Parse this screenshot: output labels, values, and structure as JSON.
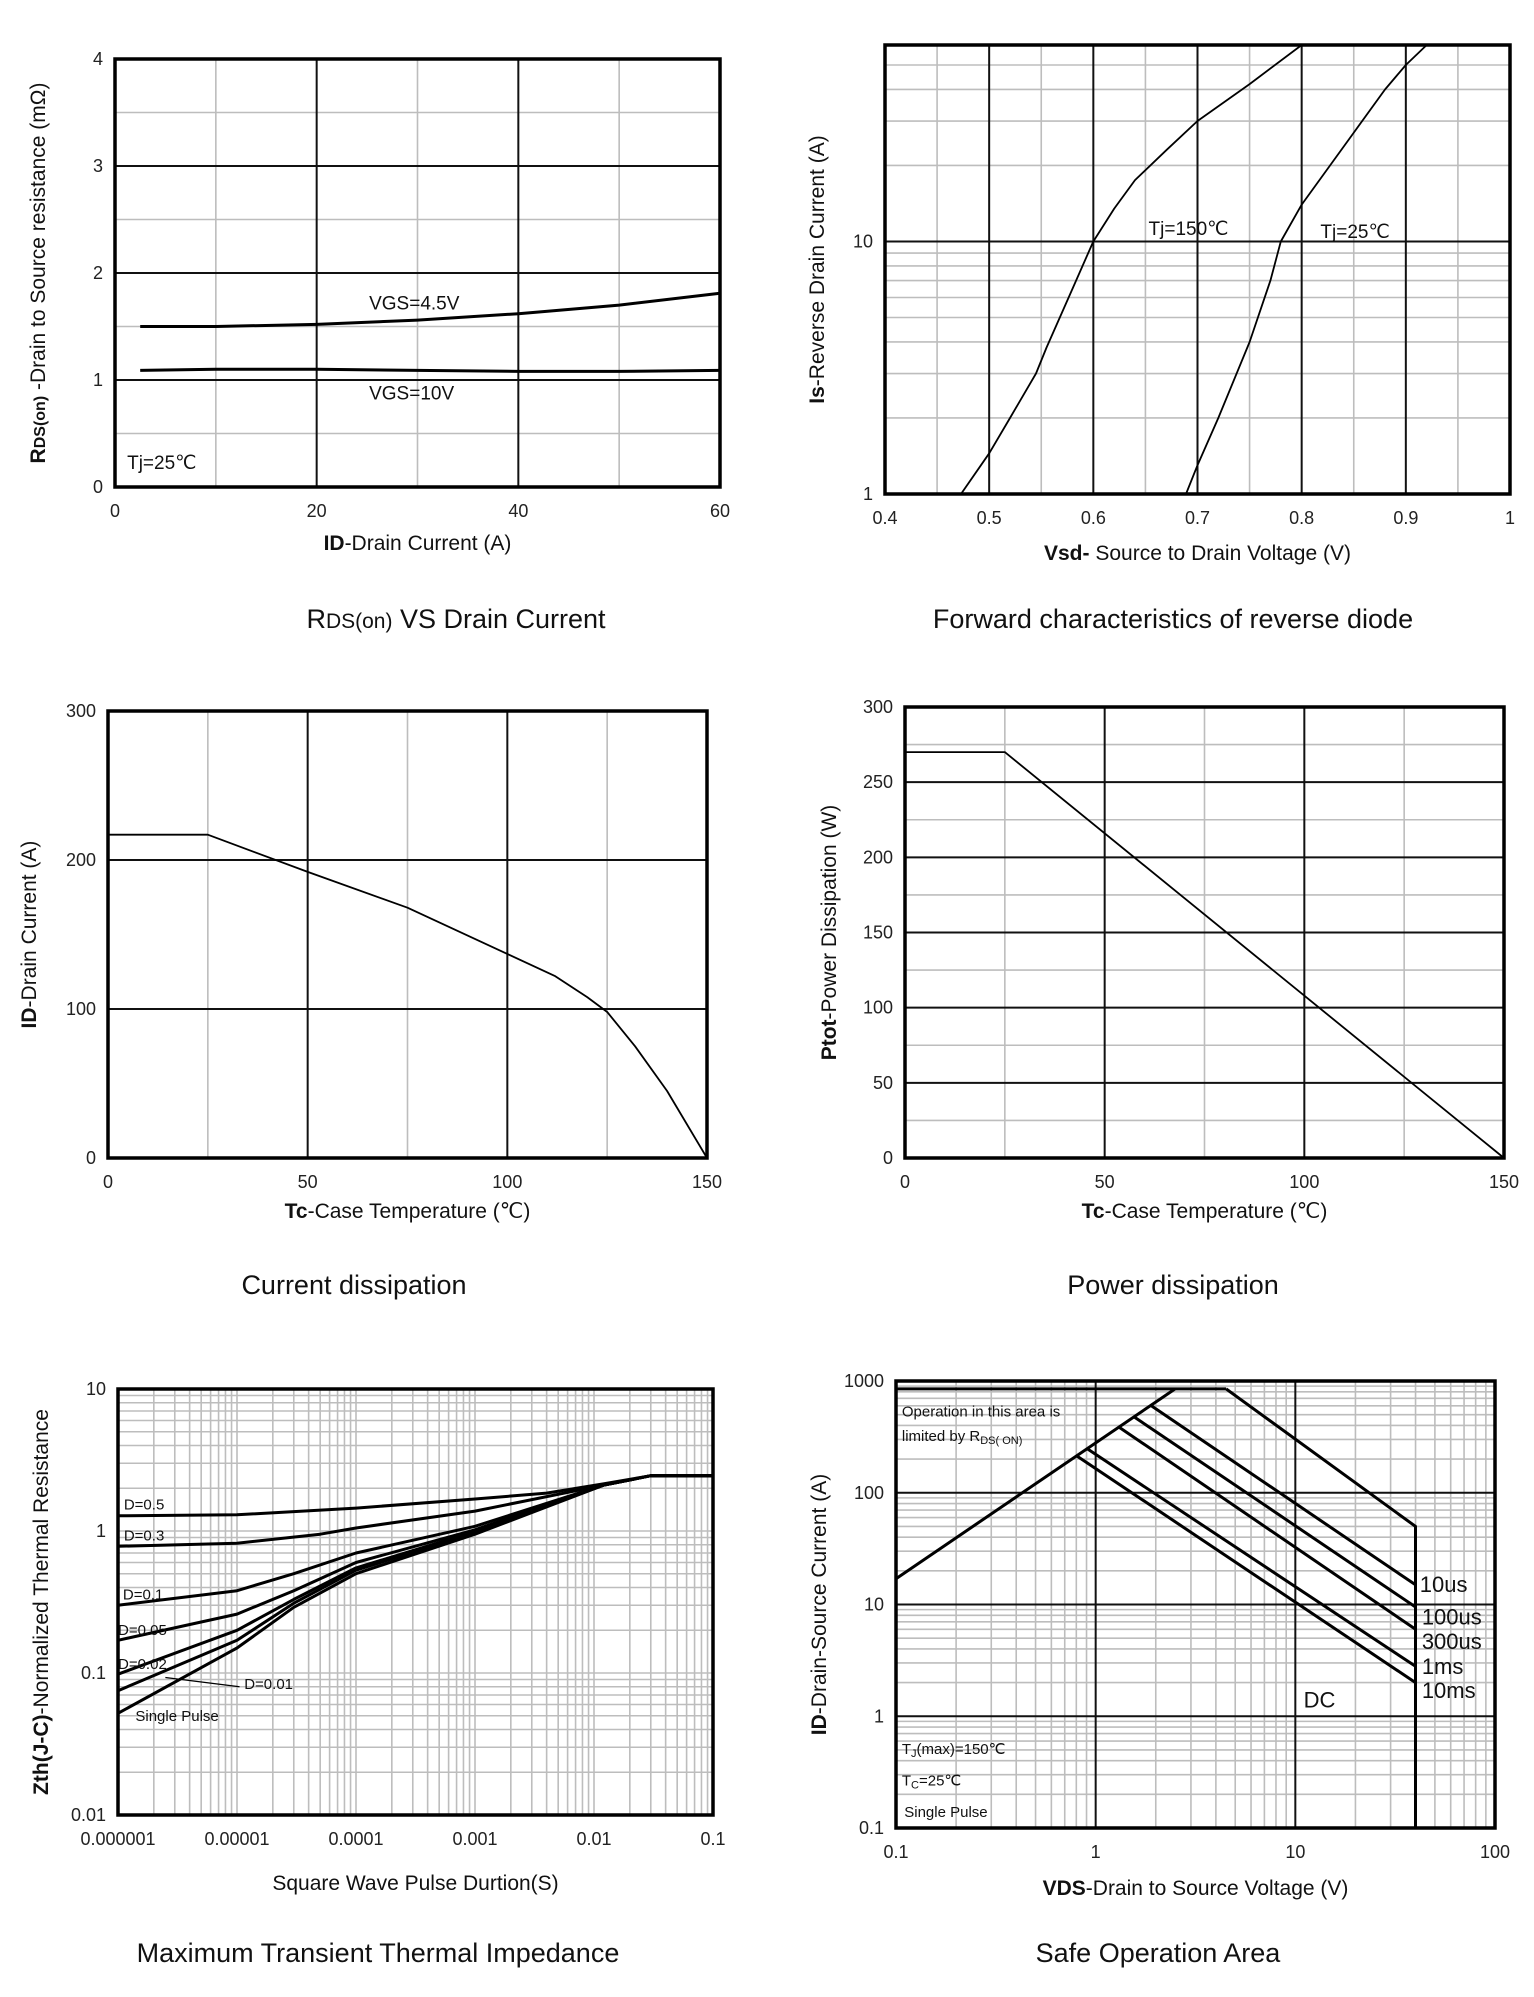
{
  "chart_data": [
    {
      "type": "line",
      "title_parts": [
        {
          "text": "R"
        },
        {
          "text": "DS(on)",
          "small": true
        },
        {
          "text": " VS Drain Current"
        }
      ],
      "xlabel_parts": [
        {
          "text": "ID",
          "bold": true
        },
        {
          "text": "-Drain Current  (A)"
        }
      ],
      "ylabel_parts": [
        {
          "text": "R",
          "bold": true
        },
        {
          "text": "DS(on)",
          "bold": true,
          "small": true
        },
        {
          "text": " -Drain to Source resistance  (mΩ)"
        }
      ],
      "x_scale": "linear",
      "y_scale": "linear",
      "xlim": [
        0,
        60
      ],
      "ylim": [
        0,
        4
      ],
      "x_ticks": [
        0,
        20,
        40,
        60
      ],
      "x_tick_labels": [
        "0",
        "20",
        "40",
        "60"
      ],
      "y_ticks": [
        0,
        1,
        2,
        3,
        4
      ],
      "y_tick_labels": [
        "0",
        "1",
        "2",
        "3",
        "4"
      ],
      "x_minor_grid": [
        10,
        30,
        50
      ],
      "y_minor_grid": [
        0.5,
        1.5,
        2.5,
        3.5
      ],
      "grid": true,
      "series": [
        {
          "name": "VGS=4.5V",
          "x": [
            2.5,
            10,
            20,
            30,
            40,
            50,
            60
          ],
          "y": [
            1.5,
            1.5,
            1.52,
            1.56,
            1.62,
            1.7,
            1.81
          ]
        },
        {
          "name": "VGS=10V",
          "x": [
            2.5,
            10,
            20,
            30,
            40,
            50,
            60
          ],
          "y": [
            1.09,
            1.1,
            1.1,
            1.09,
            1.08,
            1.08,
            1.09
          ]
        }
      ],
      "annotations": [
        {
          "parts": [
            {
              "text": "Tj=25℃"
            }
          ]
        }
      ]
    },
    {
      "type": "line",
      "title_parts": [
        {
          "text": "Forward characteristics of reverse diode"
        }
      ],
      "xlabel_parts": [
        {
          "text": "Vsd- ",
          "bold": true
        },
        {
          "text": "Source to Drain Voltage (V)"
        }
      ],
      "ylabel_parts": [
        {
          "text": "Is",
          "bold": true
        },
        {
          "text": "-Reverse Drain Current (A)"
        }
      ],
      "x_scale": "linear",
      "y_scale": "log",
      "xlim": [
        0.4,
        1
      ],
      "ylim": [
        1,
        60
      ],
      "x_ticks": [
        0.4,
        0.5,
        0.6,
        0.7,
        0.8,
        0.9,
        1
      ],
      "x_tick_labels": [
        "0.4",
        "0.5",
        "0.6",
        "0.7",
        "0.8",
        "0.9",
        "1"
      ],
      "y_ticks": [
        1,
        10
      ],
      "y_tick_labels": [
        "1",
        "10"
      ],
      "x_minor_grid": [
        0.45,
        0.55,
        0.65,
        0.75,
        0.85,
        0.95
      ],
      "grid": true,
      "series": [
        {
          "name": "Tj=150℃",
          "x": [
            0.473,
            0.5,
            0.52,
            0.545,
            0.555,
            0.58,
            0.6,
            0.62,
            0.64,
            0.67,
            0.7,
            0.75,
            0.8
          ],
          "y": [
            1,
            1.45,
            2,
            3,
            3.8,
            6.5,
            10,
            13.5,
            17.5,
            23,
            30,
            42,
            60
          ]
        },
        {
          "name": "Tj=25℃",
          "x": [
            0.689,
            0.7,
            0.72,
            0.75,
            0.77,
            0.78,
            0.8,
            0.85,
            0.88,
            0.9,
            0.92
          ],
          "y": [
            1,
            1.3,
            2,
            4,
            7,
            10,
            14,
            27,
            40,
            50,
            60
          ]
        }
      ],
      "annotations": []
    },
    {
      "type": "line",
      "title_parts": [
        {
          "text": "Current dissipation"
        }
      ],
      "xlabel_parts": [
        {
          "text": "Tc",
          "bold": true
        },
        {
          "text": "-Case Temperature (℃)"
        }
      ],
      "ylabel_parts": [
        {
          "text": "ID",
          "bold": true
        },
        {
          "text": "-Drain Current (A)"
        }
      ],
      "x_scale": "linear",
      "y_scale": "linear",
      "xlim": [
        0,
        150
      ],
      "ylim": [
        0,
        300
      ],
      "x_ticks": [
        0,
        50,
        100,
        150
      ],
      "x_tick_labels": [
        "0",
        "50",
        "100",
        "150"
      ],
      "y_ticks": [
        0,
        100,
        200,
        300
      ],
      "y_tick_labels": [
        "0",
        "100",
        "200",
        "300"
      ],
      "x_minor_grid": [
        25,
        75,
        125
      ],
      "y_minor_grid": [],
      "grid": true,
      "series": [
        {
          "x": [
            0,
            25,
            50,
            75,
            100,
            112,
            120,
            125,
            132,
            140,
            150
          ],
          "y": [
            217,
            217,
            192,
            168,
            137,
            122,
            108,
            98,
            75,
            45,
            0
          ]
        }
      ],
      "annotations": []
    },
    {
      "type": "line",
      "title_parts": [
        {
          "text": "Power dissipation"
        }
      ],
      "xlabel_parts": [
        {
          "text": "Tc",
          "bold": true
        },
        {
          "text": "-Case Temperature (℃)"
        }
      ],
      "ylabel_parts": [
        {
          "text": "Ptot",
          "bold": true
        },
        {
          "text": "-Power Dissipation  (W)"
        }
      ],
      "x_scale": "linear",
      "y_scale": "linear",
      "xlim": [
        0,
        150
      ],
      "ylim": [
        0,
        300
      ],
      "x_ticks": [
        0,
        50,
        100,
        150
      ],
      "x_tick_labels": [
        "0",
        "50",
        "100",
        "150"
      ],
      "y_ticks": [
        0,
        50,
        100,
        150,
        200,
        250,
        300
      ],
      "y_tick_labels": [
        "0",
        "50",
        "100",
        "150",
        "200",
        "250",
        "300"
      ],
      "x_minor_grid": [
        25,
        75,
        125
      ],
      "y_minor_grid": [
        25,
        75,
        125,
        175,
        225,
        275
      ],
      "grid": true,
      "series": [
        {
          "x": [
            0,
            25,
            150
          ],
          "y": [
            270,
            270,
            0
          ]
        }
      ],
      "annotations": []
    },
    {
      "type": "line",
      "title_parts": [
        {
          "text": "Maximum Transient Thermal Impedance"
        }
      ],
      "xlabel_parts": [
        {
          "text": "Square Wave Pulse Durtion(S)"
        }
      ],
      "ylabel_parts": [
        {
          "text": "Zth(J-C)",
          "bold": true
        },
        {
          "text": "-Normalized Thermal Resistance"
        }
      ],
      "x_scale": "log",
      "y_scale": "log",
      "xlim": [
        1e-06,
        0.1
      ],
      "ylim": [
        0.01,
        10
      ],
      "x_ticks": [
        1e-06,
        1e-05,
        0.0001,
        0.001,
        0.01,
        0.1
      ],
      "x_tick_labels": [
        "0.000001",
        "0.00001",
        "0.0001",
        "0.001",
        "0.01",
        "0.1"
      ],
      "y_ticks": [
        0.01,
        0.1,
        1,
        10
      ],
      "y_tick_labels": [
        "0.01",
        "0.1",
        "1",
        "10"
      ],
      "grid": true,
      "series": [
        {
          "name": "D=0.5",
          "x": [
            1e-06,
            1e-05,
            0.0001,
            0.001,
            0.004,
            0.012,
            0.03,
            0.1
          ],
          "y": [
            1.28,
            1.3,
            1.45,
            1.68,
            1.85,
            2.15,
            2.45,
            2.45
          ]
        },
        {
          "name": "D=0.3",
          "x": [
            1e-06,
            1e-05,
            5e-05,
            0.0001,
            0.001,
            0.012,
            0.03,
            0.1
          ],
          "y": [
            0.78,
            0.82,
            0.95,
            1.05,
            1.38,
            2.1,
            2.45,
            2.45
          ]
        },
        {
          "name": "D=0.1",
          "x": [
            1e-06,
            1e-05,
            3e-05,
            0.0001,
            0.001,
            0.012,
            0.03,
            0.1
          ],
          "y": [
            0.3,
            0.38,
            0.5,
            0.7,
            1.08,
            2.1,
            2.45,
            2.45
          ]
        },
        {
          "name": "D=0.05",
          "x": [
            1e-06,
            1e-05,
            3e-05,
            0.0001,
            0.001,
            0.012,
            0.03,
            0.1
          ],
          "y": [
            0.17,
            0.26,
            0.38,
            0.6,
            1.02,
            2.1,
            2.45,
            2.45
          ]
        },
        {
          "name": "D=0.02",
          "x": [
            1e-06,
            1e-05,
            3e-05,
            0.0001,
            0.001,
            0.012,
            0.03,
            0.1
          ],
          "y": [
            0.098,
            0.2,
            0.33,
            0.55,
            0.99,
            2.1,
            2.45,
            2.45
          ]
        },
        {
          "name": "D=0.01",
          "x": [
            1e-06,
            1e-05,
            3e-05,
            0.0001,
            0.001,
            0.012,
            0.03,
            0.1
          ],
          "y": [
            0.075,
            0.17,
            0.31,
            0.53,
            0.97,
            2.1,
            2.45,
            2.45
          ]
        },
        {
          "name": "Single Pulse",
          "x": [
            1e-06,
            1e-05,
            3e-05,
            0.0001,
            0.001,
            0.012,
            0.03,
            0.1
          ],
          "y": [
            0.052,
            0.15,
            0.29,
            0.5,
            0.95,
            2.1,
            2.45,
            2.45
          ]
        }
      ],
      "annotations": []
    },
    {
      "type": "line",
      "title_parts": [
        {
          "text": "Safe Operation Area"
        }
      ],
      "xlabel_parts": [
        {
          "text": "VDS",
          "bold": true
        },
        {
          "text": "-Drain to Source Voltage (V)"
        }
      ],
      "ylabel_parts": [
        {
          "text": "ID",
          "bold": true
        },
        {
          "text": "-Drain-Source  Current  (A)"
        }
      ],
      "x_scale": "log",
      "y_scale": "log",
      "xlim": [
        0.1,
        100
      ],
      "ylim": [
        0.1,
        1000
      ],
      "x_ticks": [
        0.1,
        1,
        10,
        100
      ],
      "x_tick_labels": [
        "0.1",
        "1",
        "10",
        "100"
      ],
      "y_ticks": [
        0.1,
        1,
        10,
        100,
        1000
      ],
      "y_tick_labels": [
        "0.1",
        "1",
        "10",
        "100",
        "1000"
      ],
      "grid": true,
      "series": [
        {
          "x": [
            0.1,
            2.5
          ],
          "y": [
            17,
            850
          ]
        },
        {
          "x": [
            0.1,
            4.5
          ],
          "y": [
            850,
            850
          ]
        },
        {
          "name": "DC",
          "x": [
            4.5,
            40,
            40
          ],
          "y": [
            850,
            50,
            0.1
          ]
        },
        {
          "name": "10us",
          "x": [
            1.9,
            40
          ],
          "y": [
            600,
            15
          ]
        },
        {
          "name": "100us",
          "x": [
            1.55,
            40
          ],
          "y": [
            480,
            9.5
          ]
        },
        {
          "name": "300us",
          "x": [
            1.3,
            40
          ],
          "y": [
            390,
            6
          ]
        },
        {
          "name": "1ms",
          "x": [
            0.9,
            40
          ],
          "y": [
            250,
            2.8
          ]
        },
        {
          "name": "10ms",
          "x": [
            0.8,
            40
          ],
          "y": [
            215,
            2
          ]
        }
      ],
      "annotations": [
        {
          "parts": [
            {
              "text": "Operation in this area is"
            }
          ]
        },
        {
          "parts": [
            {
              "text": "limited by R"
            },
            {
              "text": "DS( ON)",
              "sub": true
            }
          ]
        },
        {
          "parts": [
            {
              "text": "T"
            },
            {
              "text": "J",
              "sub": true
            },
            {
              "text": "(max)=150℃"
            }
          ]
        },
        {
          "parts": [
            {
              "text": "T"
            },
            {
              "text": "C",
              "sub": true
            },
            {
              "text": "=25℃"
            }
          ]
        },
        {
          "parts": [
            {
              "text": "Single Pulse"
            }
          ]
        }
      ]
    }
  ]
}
